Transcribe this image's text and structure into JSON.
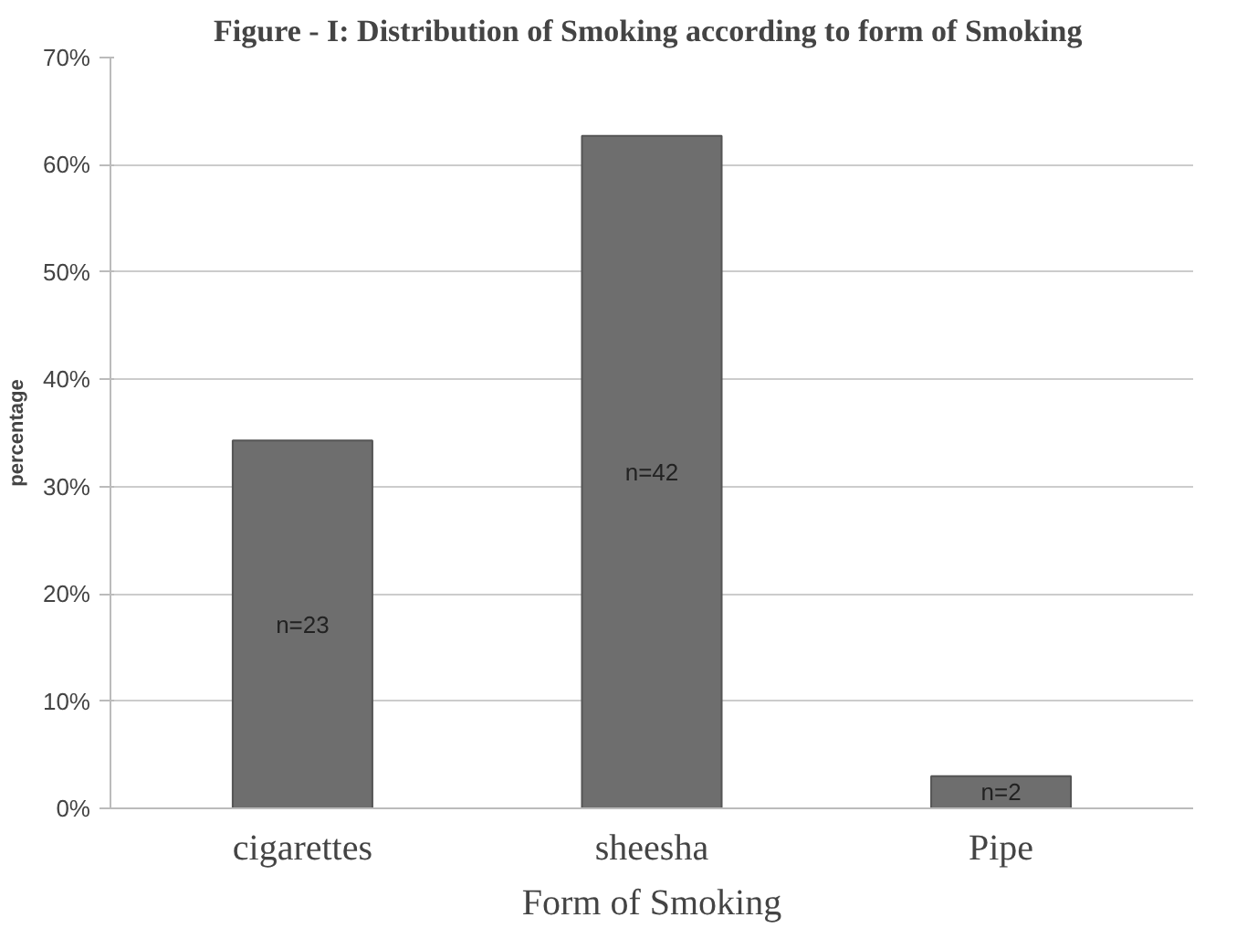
{
  "chart_data": {
    "type": "bar",
    "title": "Figure - I:  Distribution of Smoking according to form of Smoking",
    "xlabel": "Form of Smoking",
    "ylabel": "percentage",
    "categories": [
      "cigarettes",
      "sheesha",
      "Pipe"
    ],
    "values": [
      34.3,
      62.7,
      3.0
    ],
    "annotations": [
      "n=23",
      "n=42",
      "n=2"
    ],
    "color": "#6e6e6e",
    "ylim": [
      0,
      70
    ],
    "yticks": [
      {
        "value": 0,
        "label": "0%"
      },
      {
        "value": 10,
        "label": "10%"
      },
      {
        "value": 20,
        "label": "20%"
      },
      {
        "value": 30,
        "label": "30%"
      },
      {
        "value": 40,
        "label": "40%"
      },
      {
        "value": 50,
        "label": "50%"
      },
      {
        "value": 60,
        "label": "60%"
      },
      {
        "value": 70,
        "label": "70%"
      }
    ],
    "grid": "y"
  }
}
